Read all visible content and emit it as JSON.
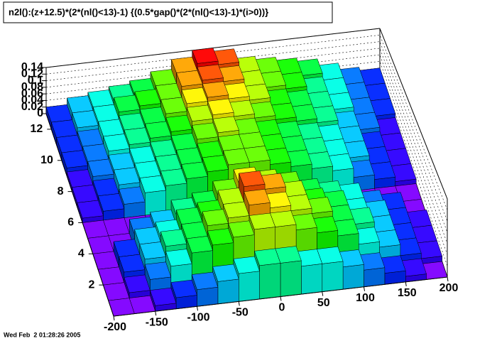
{
  "chart_data": {
    "type": "lego",
    "title": "n2l():(z+12.5)*(2*(nl()<13)-1) {(0.5*gap()*(2*(nl()<13)-1)*(i>0))}",
    "xlim": [
      -200,
      200
    ],
    "ylim": [
      0,
      13
    ],
    "zlim": [
      0,
      0.14
    ],
    "xticks": [
      -200,
      -150,
      -100,
      -50,
      0,
      50,
      100,
      150,
      200
    ],
    "yticks": [
      2,
      4,
      6,
      8,
      10,
      12
    ],
    "zticks": [
      0,
      0.02,
      0.04,
      0.06,
      0.08,
      0.1,
      0.12,
      0.14
    ],
    "xbins": [
      -200,
      -175,
      -150,
      -125,
      -100,
      -75,
      -50,
      -25,
      0,
      25,
      50,
      75,
      100,
      125,
      150,
      175,
      200
    ],
    "ybins": [
      0,
      1,
      2,
      3,
      4,
      5,
      6,
      7,
      8,
      9,
      10,
      11,
      12,
      13
    ],
    "z": [
      [
        0,
        0,
        0.01,
        0.02,
        0.03,
        0.04,
        0.05,
        0.06,
        0.06,
        0.05,
        0.05,
        0.04,
        0.03,
        0.02,
        0.01,
        0
      ],
      [
        0,
        0.01,
        0.03,
        0.05,
        0.07,
        0.08,
        0.09,
        0.1,
        0.1,
        0.09,
        0.08,
        0.07,
        0.05,
        0.04,
        0.02,
        0.01
      ],
      [
        0,
        0.02,
        0.04,
        0.06,
        0.07,
        0.09,
        0.1,
        0.12,
        0.11,
        0.1,
        0.09,
        0.07,
        0.06,
        0.04,
        0.02,
        0.01
      ],
      [
        0,
        0.02,
        0.04,
        0.05,
        0.07,
        0.08,
        0.1,
        0.13,
        0.12,
        0.1,
        0.08,
        0.07,
        0.05,
        0.04,
        0.02,
        0.01
      ],
      [
        0,
        0,
        0.03,
        0.04,
        0.06,
        0.07,
        0.09,
        0.11,
        0.1,
        0.09,
        0.07,
        0.06,
        0.05,
        0.03,
        0.02,
        0
      ],
      [
        0,
        0,
        0,
        0,
        0,
        0,
        0,
        0,
        0,
        0,
        0,
        0,
        0,
        0,
        0,
        0
      ],
      [
        0.01,
        0.02,
        0.03,
        0.05,
        0.06,
        0.07,
        0.08,
        0.09,
        0.09,
        0.08,
        0.07,
        0.06,
        0.05,
        0.03,
        0.02,
        0.01
      ],
      [
        0.01,
        0.02,
        0.04,
        0.05,
        0.06,
        0.07,
        0.08,
        0.09,
        0.09,
        0.08,
        0.07,
        0.06,
        0.05,
        0.04,
        0.02,
        0.01
      ],
      [
        0.01,
        0.03,
        0.04,
        0.05,
        0.06,
        0.07,
        0.09,
        0.1,
        0.09,
        0.08,
        0.07,
        0.06,
        0.05,
        0.04,
        0.02,
        0.01
      ],
      [
        0.02,
        0.03,
        0.05,
        0.06,
        0.07,
        0.08,
        0.1,
        0.11,
        0.1,
        0.09,
        0.08,
        0.07,
        0.06,
        0.04,
        0.03,
        0.01
      ],
      [
        0.02,
        0.03,
        0.05,
        0.06,
        0.07,
        0.09,
        0.11,
        0.12,
        0.11,
        0.1,
        0.08,
        0.07,
        0.06,
        0.05,
        0.03,
        0.02
      ],
      [
        0.02,
        0.04,
        0.05,
        0.07,
        0.08,
        0.09,
        0.12,
        0.13,
        0.12,
        0.1,
        0.09,
        0.08,
        0.06,
        0.05,
        0.03,
        0.02
      ],
      [
        0.02,
        0.04,
        0.05,
        0.06,
        0.07,
        0.09,
        0.12,
        0.14,
        0.13,
        0.1,
        0.09,
        0.08,
        0.07,
        0.05,
        0.03,
        0.02
      ]
    ]
  },
  "footer": "Wed Feb  2 01:28:26 2005"
}
